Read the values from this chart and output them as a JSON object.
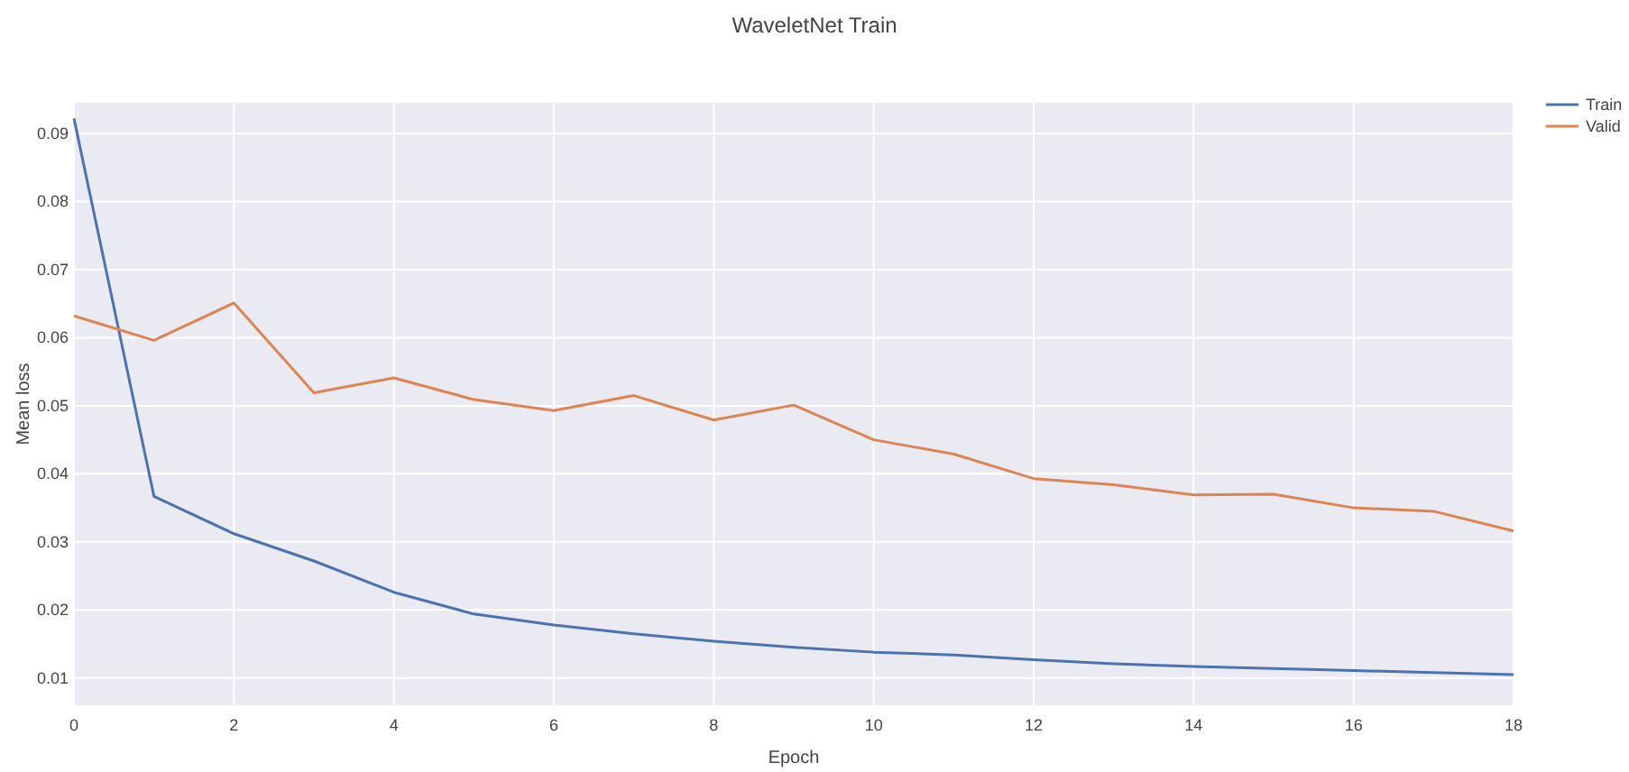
{
  "chart_data": {
    "type": "line",
    "title": "WaveletNet Train",
    "xlabel": "Epoch",
    "ylabel": "Mean loss",
    "x": [
      0,
      1,
      2,
      3,
      4,
      5,
      6,
      7,
      8,
      9,
      10,
      11,
      12,
      13,
      14,
      15,
      16,
      17,
      18
    ],
    "series": [
      {
        "name": "Train",
        "color": "#4c72b0",
        "values": [
          0.0922,
          0.0367,
          0.0312,
          0.0272,
          0.0226,
          0.0194,
          0.0178,
          0.0165,
          0.0154,
          0.0145,
          0.0138,
          0.0134,
          0.0127,
          0.0121,
          0.0117,
          0.0114,
          0.0111,
          0.0108,
          0.0105
        ]
      },
      {
        "name": "Valid",
        "color": "#dd8452",
        "values": [
          0.0632,
          0.0596,
          0.0651,
          0.0519,
          0.0541,
          0.0509,
          0.0493,
          0.0515,
          0.0479,
          0.0501,
          0.045,
          0.0429,
          0.0393,
          0.0384,
          0.0369,
          0.037,
          0.035,
          0.0345,
          0.0316
        ]
      }
    ],
    "xlim": [
      0,
      18
    ],
    "xticks": [
      0,
      2,
      4,
      6,
      8,
      10,
      12,
      14,
      16,
      18
    ],
    "ylim": [
      0.006,
      0.0945
    ],
    "yticks": [
      0.01,
      0.02,
      0.03,
      0.04,
      0.05,
      0.06,
      0.07,
      0.08,
      0.09
    ],
    "grid": true,
    "legend": "top right",
    "marker": "none",
    "line_style": "solid"
  }
}
